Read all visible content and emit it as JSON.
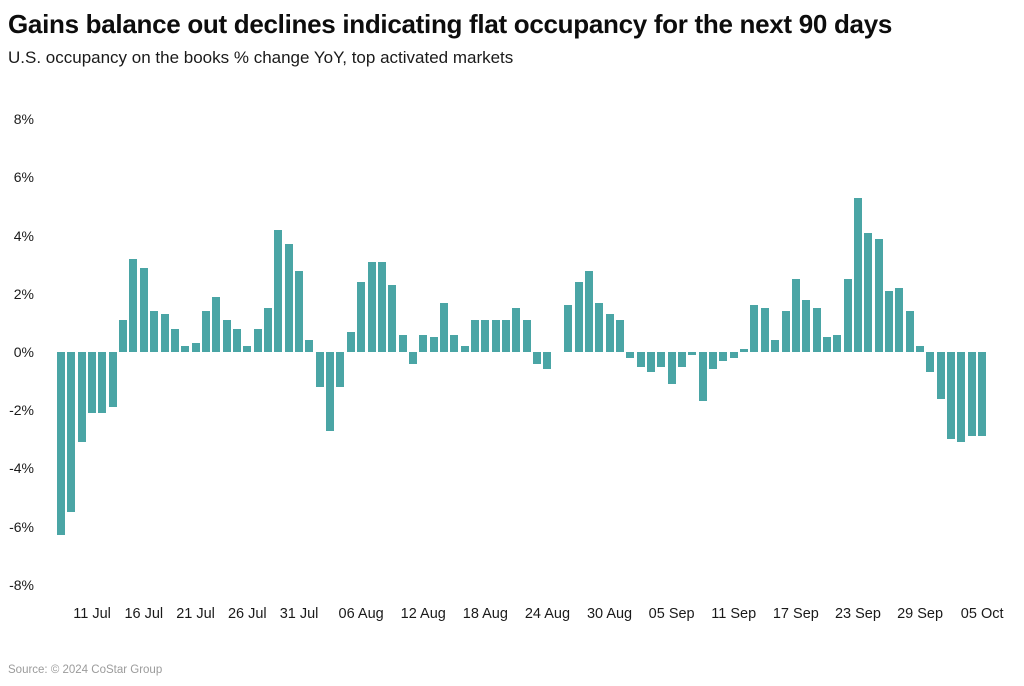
{
  "header": {
    "title": "Gains balance out declines indicating flat occupancy for the next 90 days",
    "subtitle": "U.S. occupancy on the books % change YoY, top activated markets"
  },
  "footer": {
    "source": "Source: © 2024 CoStar Group"
  },
  "colors": {
    "bar": "#4aa5a5",
    "title_text": "#0d0d0d",
    "axis_text": "#1a1a1a",
    "source_text": "#9b9b9b",
    "background": "#ffffff"
  },
  "chart_data": {
    "type": "bar",
    "title": "Gains balance out declines indicating flat occupancy for the next 90 days",
    "subtitle": "U.S. occupancy on the books % change YoY, top activated markets",
    "xlabel": "",
    "ylabel": "% change YoY",
    "ylim": [
      -8,
      8
    ],
    "grid": false,
    "legend": "none",
    "bar_count": 90,
    "x_unit": "day",
    "values": [
      -6.3,
      -5.5,
      -3.1,
      -2.1,
      -2.1,
      -1.9,
      1.1,
      3.2,
      2.9,
      1.4,
      1.3,
      0.8,
      0.2,
      0.3,
      1.4,
      1.9,
      1.1,
      0.8,
      0.2,
      0.8,
      1.5,
      4.2,
      3.7,
      2.8,
      0.4,
      -1.2,
      -2.7,
      -1.2,
      0.7,
      2.4,
      3.1,
      3.1,
      2.3,
      0.6,
      -0.4,
      0.6,
      0.5,
      1.7,
      0.6,
      0.2,
      1.1,
      1.1,
      1.1,
      1.1,
      1.5,
      1.1,
      -0.4,
      -0.6,
      0.0,
      1.6,
      2.4,
      2.8,
      1.7,
      1.3,
      1.1,
      -0.2,
      -0.5,
      -0.7,
      -0.5,
      -1.1,
      -0.5,
      -0.1,
      -1.7,
      -0.6,
      -0.3,
      -0.2,
      0.1,
      1.6,
      1.5,
      0.4,
      1.4,
      2.5,
      1.8,
      1.5,
      0.5,
      0.6,
      2.5,
      5.3,
      4.1,
      3.9,
      2.1,
      2.2,
      1.4,
      0.2,
      -0.7,
      -1.6,
      -3.0,
      -3.1,
      -2.9,
      -2.9
    ],
    "x_ticks": [
      {
        "label": "11 Jul",
        "index": 3
      },
      {
        "label": "16 Jul",
        "index": 8
      },
      {
        "label": "21 Jul",
        "index": 13
      },
      {
        "label": "26 Jul",
        "index": 18
      },
      {
        "label": "31 Jul",
        "index": 23
      },
      {
        "label": "06 Aug",
        "index": 29
      },
      {
        "label": "12 Aug",
        "index": 35
      },
      {
        "label": "18 Aug",
        "index": 41
      },
      {
        "label": "24 Aug",
        "index": 47
      },
      {
        "label": "30 Aug",
        "index": 53
      },
      {
        "label": "05 Sep",
        "index": 59
      },
      {
        "label": "11 Sep",
        "index": 65
      },
      {
        "label": "17 Sep",
        "index": 71
      },
      {
        "label": "23 Sep",
        "index": 77
      },
      {
        "label": "29 Sep",
        "index": 83
      },
      {
        "label": "05 Oct",
        "index": 89
      }
    ],
    "y_ticks": [
      {
        "label": "8%",
        "value": 8
      },
      {
        "label": "6%",
        "value": 6
      },
      {
        "label": "4%",
        "value": 4
      },
      {
        "label": "2%",
        "value": 2
      },
      {
        "label": "0%",
        "value": 0
      },
      {
        "label": "-2%",
        "value": -2
      },
      {
        "label": "-4%",
        "value": -4
      },
      {
        "label": "-6%",
        "value": -6
      },
      {
        "label": "-8%",
        "value": -8
      }
    ]
  }
}
